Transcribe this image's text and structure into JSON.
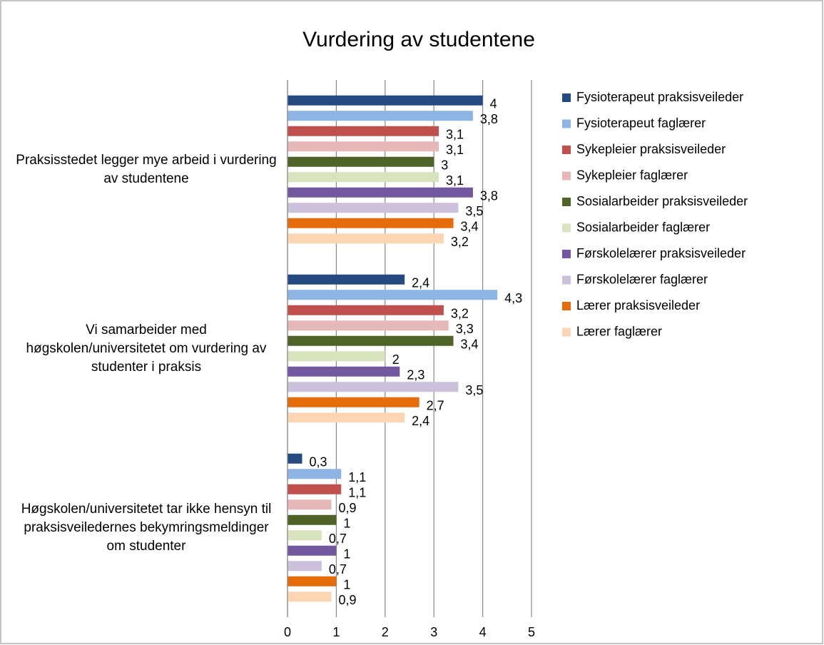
{
  "chart_data": {
    "type": "bar",
    "orientation": "horizontal",
    "title": "Vurdering av studentene",
    "categories": [
      "Praksisstedet legger mye arbeid i vurdering av studentene",
      "Vi samarbeider med høgskolen/universitetet om vurdering av studenter i praksis",
      "Høgskolen/universitetet tar ikke hensyn til praksisveiledernes bekymringsmeldinger om studenter"
    ],
    "series": [
      {
        "name": "Fysioterapeut praksisveileder",
        "color": "#254a80",
        "values": [
          4,
          2.4,
          0.3
        ],
        "value_labels": [
          "4",
          "2,4",
          "0,3"
        ]
      },
      {
        "name": "Fysioterapeut faglærer",
        "color": "#8eb4e3",
        "values": [
          3.8,
          4.3,
          1.1
        ],
        "value_labels": [
          "3,8",
          "4,3",
          "1,1"
        ]
      },
      {
        "name": "Sykepleier praksisveileder",
        "color": "#c0504d",
        "values": [
          3.1,
          3.2,
          1.1
        ],
        "value_labels": [
          "3,1",
          "3,2",
          "1,1"
        ]
      },
      {
        "name": "Sykepleier faglærer",
        "color": "#e6b9b8",
        "values": [
          3.1,
          3.3,
          0.9
        ],
        "value_labels": [
          "3,1",
          "3,3",
          "0,9"
        ]
      },
      {
        "name": "Sosialarbeider praksisveileder",
        "color": "#4f6228",
        "values": [
          3,
          3.4,
          1
        ],
        "value_labels": [
          "3",
          "3,4",
          "1"
        ]
      },
      {
        "name": "Sosialarbeider faglærer",
        "color": "#d7e4bd",
        "values": [
          3.1,
          2,
          0.7
        ],
        "value_labels": [
          "3,1",
          "2",
          "0,7"
        ]
      },
      {
        "name": "Førskolelærer praksisveileder",
        "color": "#71589f",
        "values": [
          3.8,
          2.3,
          1
        ],
        "value_labels": [
          "3,8",
          "2,3",
          "1"
        ]
      },
      {
        "name": "Førskolelærer faglærer",
        "color": "#ccc1da",
        "values": [
          3.5,
          3.5,
          0.7
        ],
        "value_labels": [
          "3,5",
          "3,5",
          "0,7"
        ]
      },
      {
        "name": "Lærer praksisveileder",
        "color": "#e46c0a",
        "values": [
          3.4,
          2.7,
          1
        ],
        "value_labels": [
          "3,4",
          "2,7",
          "1"
        ]
      },
      {
        "name": "Lærer faglærer",
        "color": "#fcd5b5",
        "values": [
          3.2,
          2.4,
          0.9
        ],
        "value_labels": [
          "3,2",
          "2,4",
          "0,9"
        ]
      }
    ],
    "xlim": [
      0,
      5
    ],
    "xticks": [
      0,
      1,
      2,
      3,
      4,
      5
    ],
    "grid": true,
    "legend": "right"
  }
}
